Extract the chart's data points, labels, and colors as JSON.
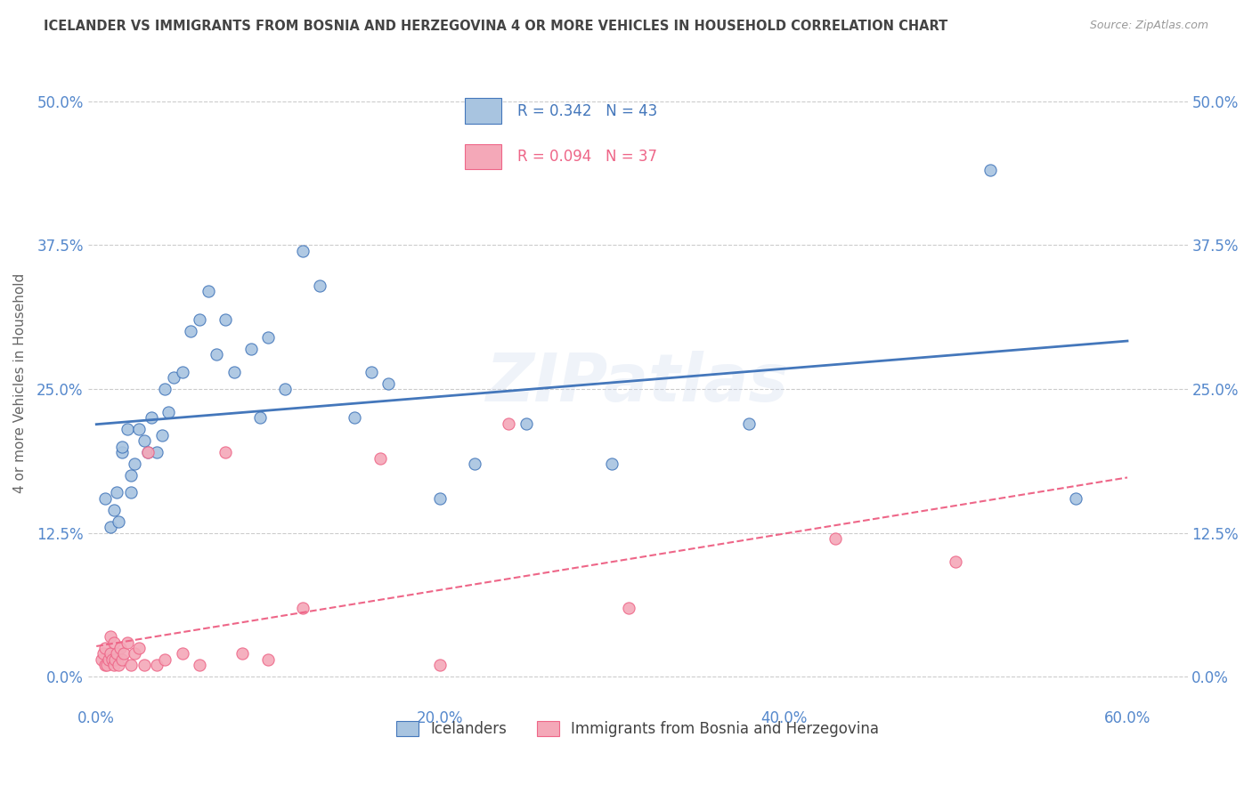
{
  "title": "ICELANDER VS IMMIGRANTS FROM BOSNIA AND HERZEGOVINA 4 OR MORE VEHICLES IN HOUSEHOLD CORRELATION CHART",
  "source": "Source: ZipAtlas.com",
  "xlabel_ticks": [
    "0.0%",
    "20.0%",
    "40.0%",
    "60.0%"
  ],
  "xlabel_tick_vals": [
    0.0,
    0.2,
    0.4,
    0.6
  ],
  "ylabel_ticks": [
    "0.0%",
    "12.5%",
    "25.0%",
    "37.5%",
    "50.0%"
  ],
  "ylabel_tick_vals": [
    0.0,
    0.125,
    0.25,
    0.375,
    0.5
  ],
  "ylabel": "4 or more Vehicles in Household",
  "legend_label1": "Icelanders",
  "legend_label2": "Immigrants from Bosnia and Herzegovina",
  "R1": 0.342,
  "N1": 43,
  "R2": 0.094,
  "N2": 37,
  "blue_color": "#A8C4E0",
  "pink_color": "#F4A8B8",
  "line_blue": "#4477BB",
  "line_pink": "#EE6688",
  "title_color": "#444444",
  "axis_color": "#5588CC",
  "watermark": "ZIPatlas",
  "blue_x": [
    0.005,
    0.008,
    0.01,
    0.012,
    0.013,
    0.015,
    0.015,
    0.018,
    0.02,
    0.02,
    0.022,
    0.025,
    0.028,
    0.03,
    0.032,
    0.035,
    0.038,
    0.04,
    0.042,
    0.045,
    0.05,
    0.055,
    0.06,
    0.065,
    0.07,
    0.075,
    0.08,
    0.09,
    0.095,
    0.1,
    0.11,
    0.12,
    0.13,
    0.15,
    0.16,
    0.17,
    0.2,
    0.22,
    0.25,
    0.3,
    0.38,
    0.52,
    0.57
  ],
  "blue_y": [
    0.155,
    0.13,
    0.145,
    0.16,
    0.135,
    0.195,
    0.2,
    0.215,
    0.16,
    0.175,
    0.185,
    0.215,
    0.205,
    0.195,
    0.225,
    0.195,
    0.21,
    0.25,
    0.23,
    0.26,
    0.265,
    0.3,
    0.31,
    0.335,
    0.28,
    0.31,
    0.265,
    0.285,
    0.225,
    0.295,
    0.25,
    0.37,
    0.34,
    0.225,
    0.265,
    0.255,
    0.155,
    0.185,
    0.22,
    0.185,
    0.22,
    0.44,
    0.155
  ],
  "pink_x": [
    0.003,
    0.004,
    0.005,
    0.005,
    0.006,
    0.007,
    0.008,
    0.008,
    0.009,
    0.01,
    0.01,
    0.011,
    0.012,
    0.013,
    0.014,
    0.015,
    0.016,
    0.018,
    0.02,
    0.022,
    0.025,
    0.028,
    0.03,
    0.035,
    0.04,
    0.05,
    0.06,
    0.075,
    0.085,
    0.1,
    0.12,
    0.165,
    0.2,
    0.24,
    0.31,
    0.43,
    0.5
  ],
  "pink_y": [
    0.015,
    0.02,
    0.01,
    0.025,
    0.01,
    0.015,
    0.02,
    0.035,
    0.015,
    0.01,
    0.03,
    0.015,
    0.02,
    0.01,
    0.025,
    0.015,
    0.02,
    0.03,
    0.01,
    0.02,
    0.025,
    0.01,
    0.195,
    0.01,
    0.015,
    0.02,
    0.01,
    0.195,
    0.02,
    0.015,
    0.06,
    0.19,
    0.01,
    0.22,
    0.06,
    0.12,
    0.1
  ],
  "xlim": [
    -0.005,
    0.635
  ],
  "ylim": [
    -0.025,
    0.535
  ]
}
